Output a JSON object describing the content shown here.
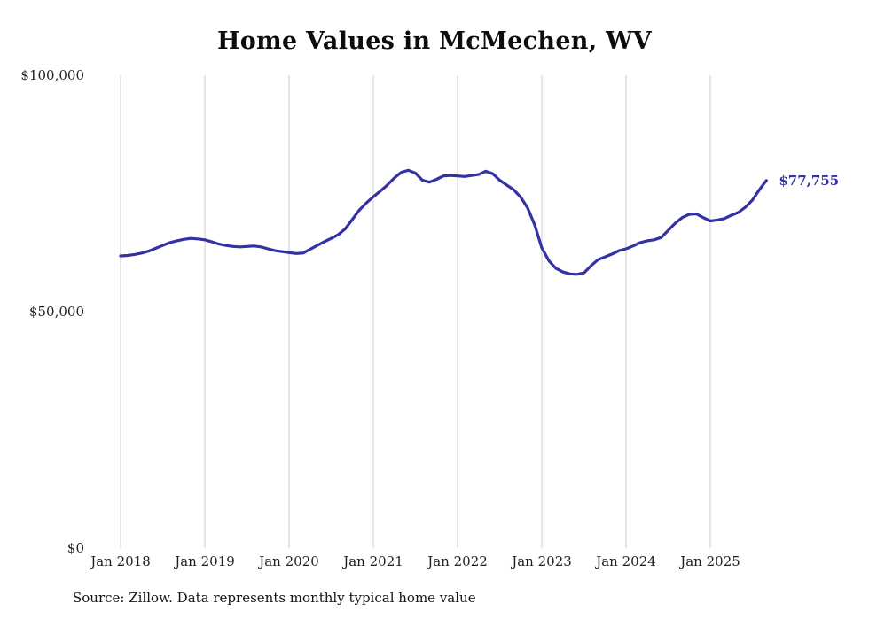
{
  "chart_data": {
    "type": "line",
    "title": "Home Values in McMechen, WV",
    "source_note": "Source: Zillow. Data represents monthly typical home value",
    "end_label": "$77,755",
    "line_color": "#3431a5",
    "grid_color": "#cccccc",
    "xlabel": "",
    "ylabel": "",
    "ylim": [
      0,
      100000
    ],
    "grid": "vertical-yearly",
    "frequency": "monthly",
    "x_start": "Jan 2018",
    "x_end": "Sep 2025",
    "x_tick_labels": [
      "Jan 2018",
      "Jan 2019",
      "Jan 2020",
      "Jan 2021",
      "Jan 2022",
      "Jan 2023",
      "Jan 2024",
      "Jan 2025"
    ],
    "y_ticks": [
      {
        "label": "$100,000",
        "value": 100000
      },
      {
        "label": "$50,000",
        "value": 50000
      },
      {
        "label": "$0",
        "value": 0
      }
    ],
    "series": [
      {
        "name": "Typical home value",
        "values": [
          61800,
          61900,
          62100,
          62400,
          62800,
          63400,
          64000,
          64600,
          65000,
          65300,
          65500,
          65400,
          65200,
          64800,
          64300,
          64000,
          63800,
          63700,
          63800,
          63900,
          63700,
          63300,
          62900,
          62700,
          62500,
          62300,
          62400,
          63200,
          64000,
          64800,
          65500,
          66300,
          67500,
          69500,
          71500,
          73000,
          74300,
          75500,
          76800,
          78300,
          79500,
          79900,
          79300,
          77800,
          77400,
          78000,
          78700,
          78800,
          78700,
          78600,
          78800,
          79000,
          79700,
          79200,
          77800,
          76800,
          75800,
          74200,
          71900,
          68300,
          63500,
          60800,
          59200,
          58400,
          58000,
          57900,
          58200,
          59700,
          61000,
          61600,
          62200,
          62900,
          63300,
          63900,
          64600,
          65000,
          65200,
          65700,
          67200,
          68700,
          69900,
          70600,
          70700,
          69900,
          69200,
          69400,
          69700,
          70400,
          71000,
          72100,
          73600,
          75800,
          77755
        ]
      }
    ]
  }
}
